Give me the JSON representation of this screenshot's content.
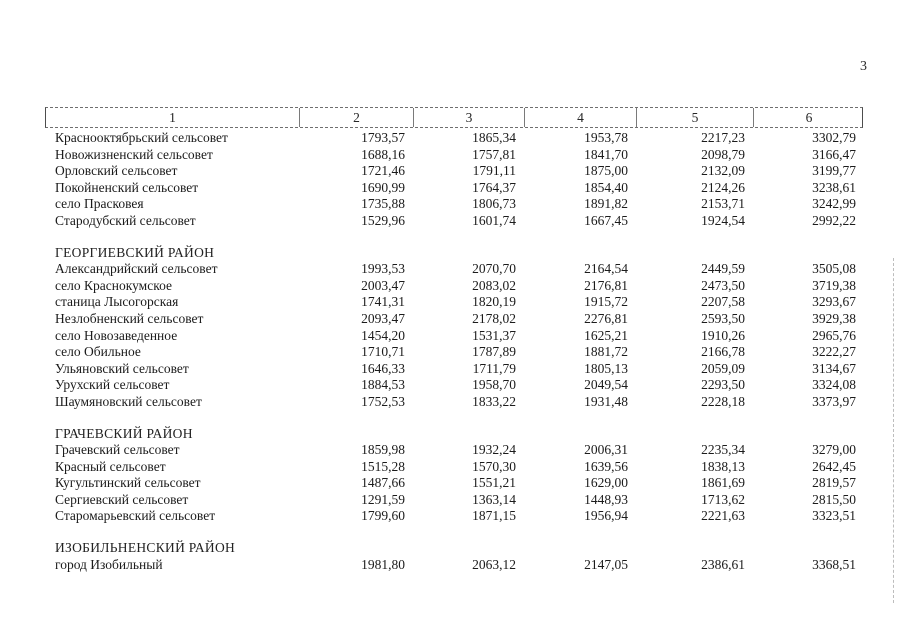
{
  "page": {
    "number": "3"
  },
  "table": {
    "column_headers": [
      "1",
      "2",
      "3",
      "4",
      "5",
      "6"
    ],
    "sections": [
      {
        "title": "",
        "rows": [
          {
            "name": "Краснооктябрьский сельсовет",
            "values": [
              "1793,57",
              "1865,34",
              "1953,78",
              "2217,23",
              "3302,79"
            ]
          },
          {
            "name": "Новожизненский сельсовет",
            "values": [
              "1688,16",
              "1757,81",
              "1841,70",
              "2098,79",
              "3166,47"
            ]
          },
          {
            "name": "Орловский сельсовет",
            "values": [
              "1721,46",
              "1791,11",
              "1875,00",
              "2132,09",
              "3199,77"
            ]
          },
          {
            "name": "Покойненский сельсовет",
            "values": [
              "1690,99",
              "1764,37",
              "1854,40",
              "2124,26",
              "3238,61"
            ]
          },
          {
            "name": "село Прасковея",
            "values": [
              "1735,88",
              "1806,73",
              "1891,82",
              "2153,71",
              "3242,99"
            ]
          },
          {
            "name": "Стародубский сельсовет",
            "values": [
              "1529,96",
              "1601,74",
              "1667,45",
              "1924,54",
              "2992,22"
            ]
          }
        ]
      },
      {
        "title": "ГЕОРГИЕВСКИЙ РАЙОН",
        "rows": [
          {
            "name": "Александрийский сельсовет",
            "values": [
              "1993,53",
              "2070,70",
              "2164,54",
              "2449,59",
              "3505,08"
            ]
          },
          {
            "name": "село Краснокумское",
            "values": [
              "2003,47",
              "2083,02",
              "2176,81",
              "2473,50",
              "3719,38"
            ]
          },
          {
            "name": "станица Лысогорская",
            "values": [
              "1741,31",
              "1820,19",
              "1915,72",
              "2207,58",
              "3293,67"
            ]
          },
          {
            "name": "Незлобненский сельсовет",
            "values": [
              "2093,47",
              "2178,02",
              "2276,81",
              "2593,50",
              "3929,38"
            ]
          },
          {
            "name": "село Новозаведенное",
            "values": [
              "1454,20",
              "1531,37",
              "1625,21",
              "1910,26",
              "2965,76"
            ]
          },
          {
            "name": "село Обильное",
            "values": [
              "1710,71",
              "1787,89",
              "1881,72",
              "2166,78",
              "3222,27"
            ]
          },
          {
            "name": "Ульяновский сельсовет",
            "values": [
              "1646,33",
              "1711,79",
              "1805,13",
              "2059,09",
              "3134,67"
            ]
          },
          {
            "name": "Урухский сельсовет",
            "values": [
              "1884,53",
              "1958,70",
              "2049,54",
              "2293,50",
              "3324,08"
            ]
          },
          {
            "name": "Шаумяновский сельсовет",
            "values": [
              "1752,53",
              "1833,22",
              "1931,48",
              "2228,18",
              "3373,97"
            ]
          }
        ]
      },
      {
        "title": "ГРАЧЕВСКИЙ РАЙОН",
        "rows": [
          {
            "name": "Грачевский сельсовет",
            "values": [
              "1859,98",
              "1932,24",
              "2006,31",
              "2235,34",
              "3279,00"
            ]
          },
          {
            "name": "Красный сельсовет",
            "values": [
              "1515,28",
              "1570,30",
              "1639,56",
              "1838,13",
              "2642,45"
            ]
          },
          {
            "name": "Кугультинский сельсовет",
            "values": [
              "1487,66",
              "1551,21",
              "1629,00",
              "1861,69",
              "2819,57"
            ]
          },
          {
            "name": "Сергиевский сельсовет",
            "values": [
              "1291,59",
              "1363,14",
              "1448,93",
              "1713,62",
              "2815,50"
            ]
          },
          {
            "name": "Старомарьевский сельсовет",
            "values": [
              "1799,60",
              "1871,15",
              "1956,94",
              "2221,63",
              "3323,51"
            ]
          }
        ]
      },
      {
        "title": "ИЗОБИЛЬНЕНСКИЙ РАЙОН",
        "rows": [
          {
            "name": "город Изобильный",
            "values": [
              "1981,80",
              "2063,12",
              "2147,05",
              "2386,61",
              "3368,51"
            ]
          }
        ]
      }
    ]
  }
}
